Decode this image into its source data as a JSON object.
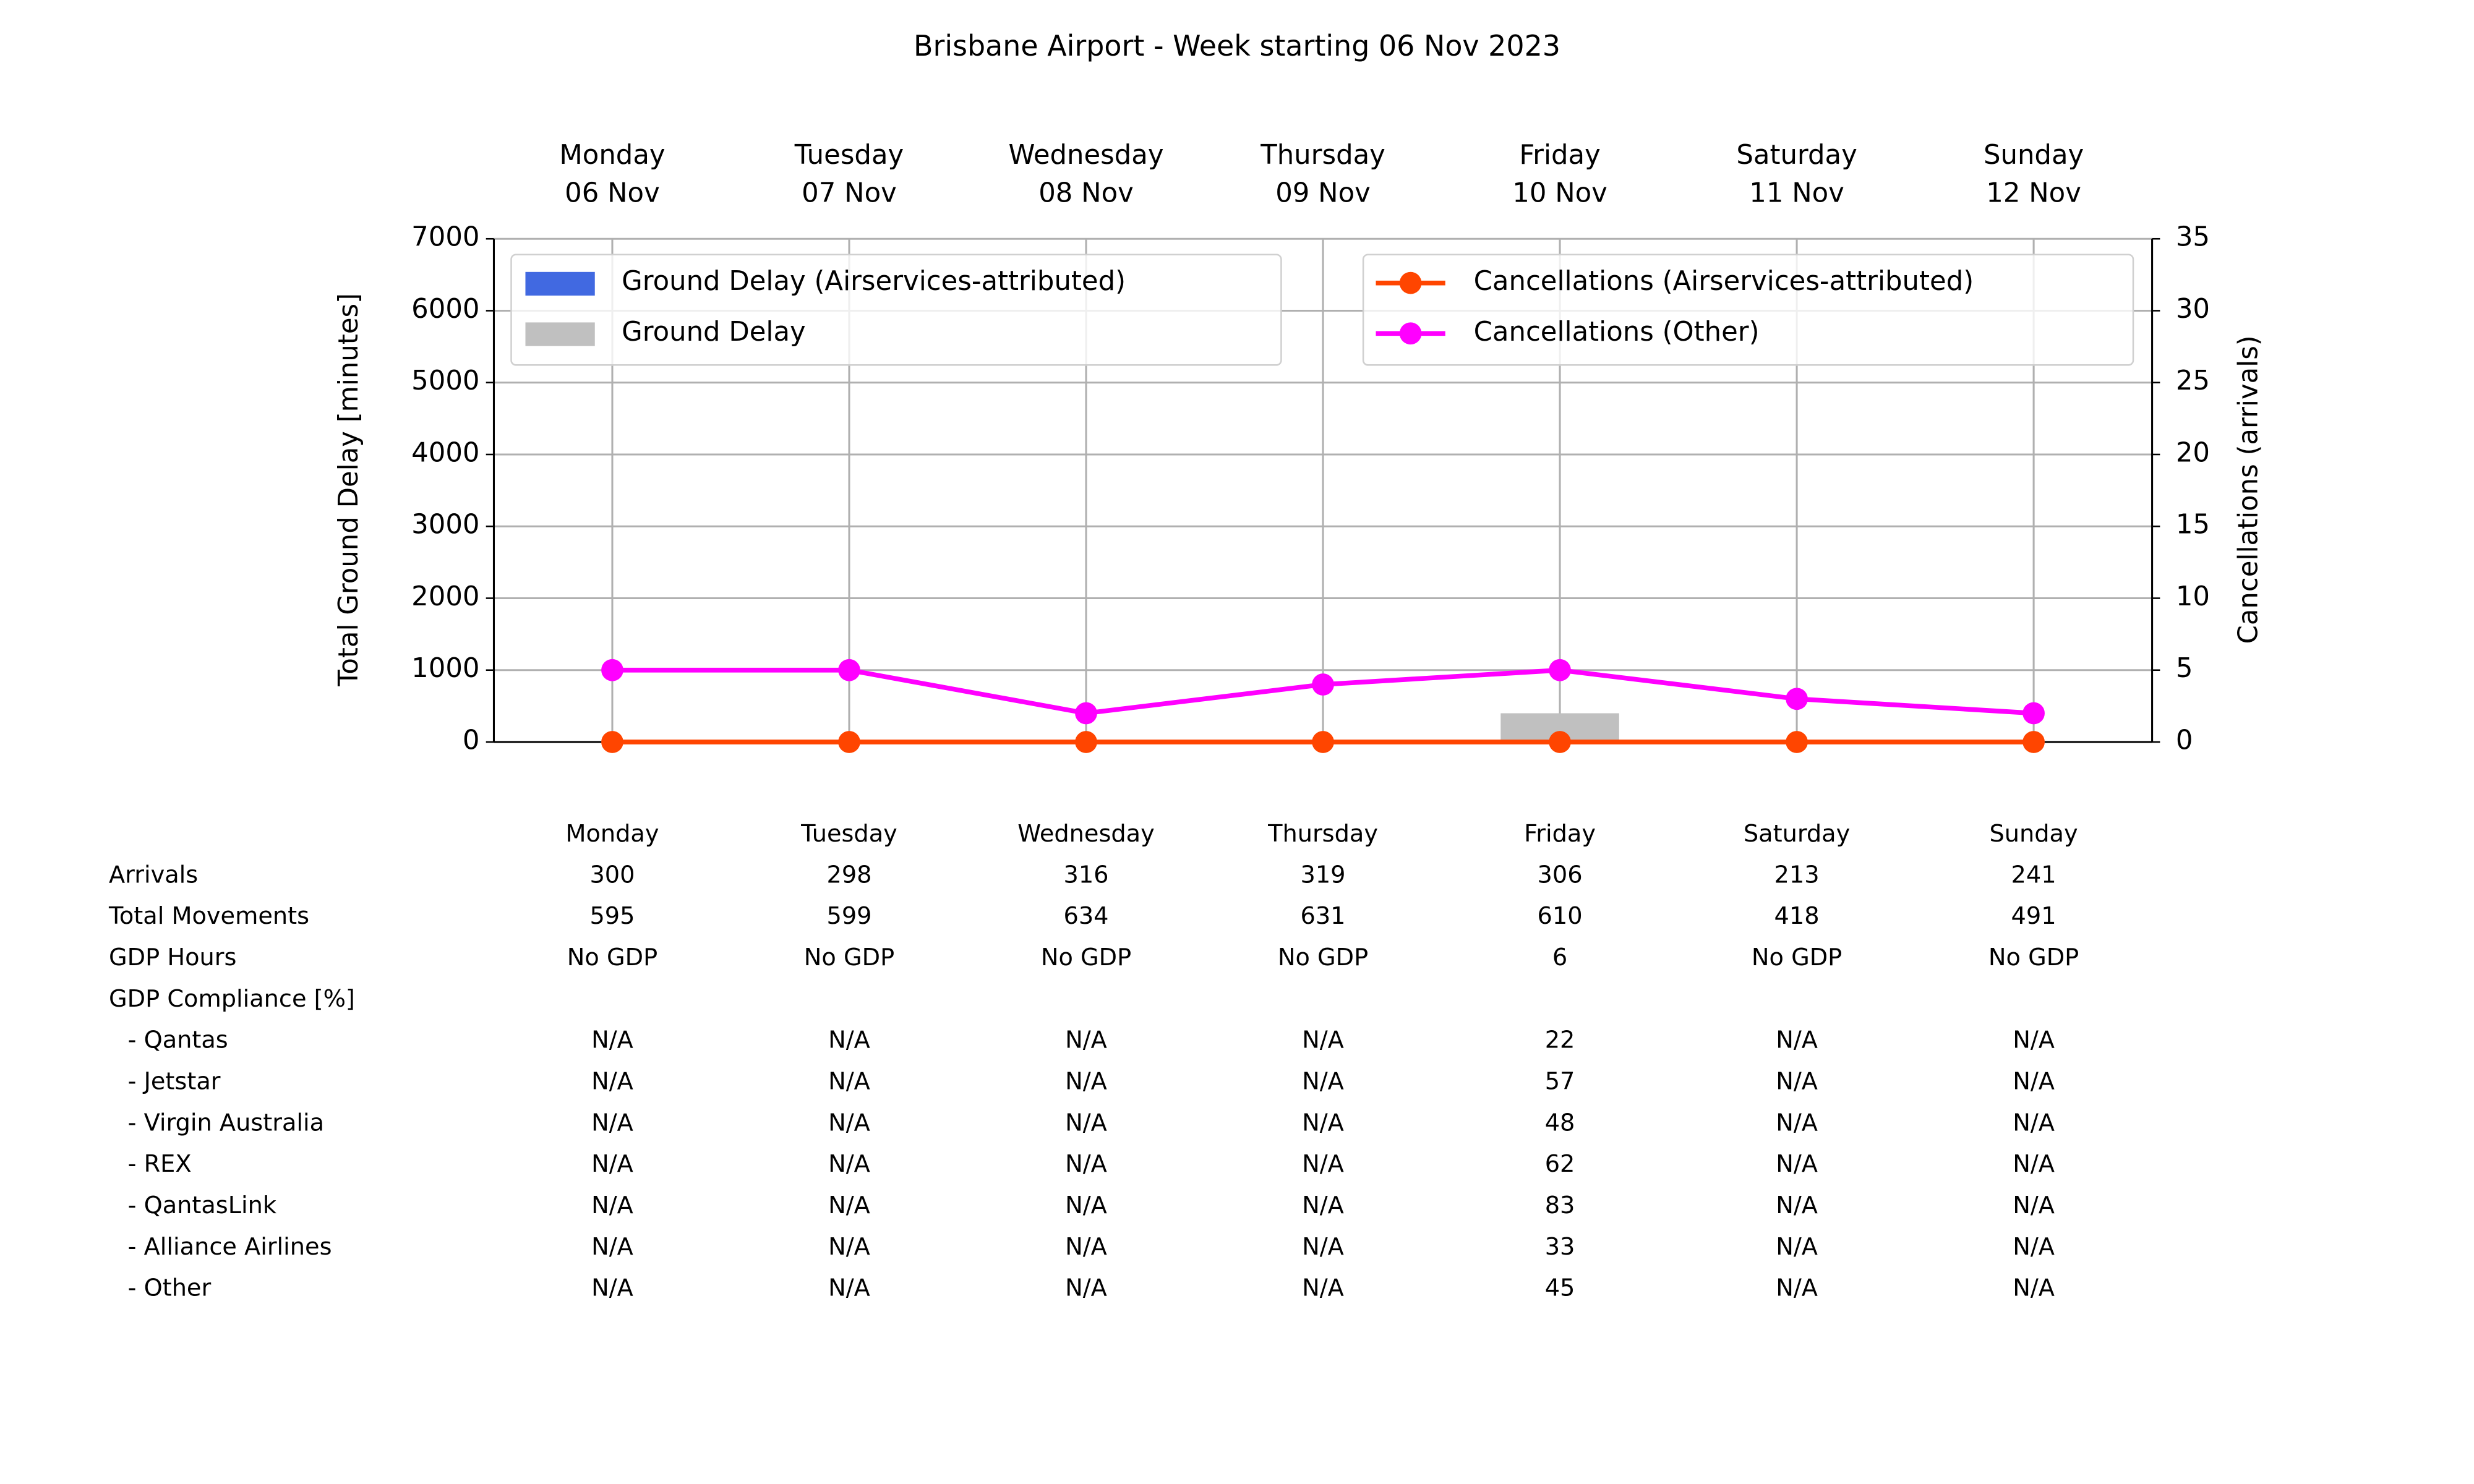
{
  "chart_data": {
    "type": "bar",
    "title": "Brisbane Airport - Week starting 06 Nov 2023",
    "categories": [
      "Monday",
      "Tuesday",
      "Wednesday",
      "Thursday",
      "Friday",
      "Saturday",
      "Sunday"
    ],
    "dates": [
      "06 Nov",
      "07 Nov",
      "08 Nov",
      "09 Nov",
      "10 Nov",
      "11 Nov",
      "12 Nov"
    ],
    "ylabel": "Total Ground Delay [minutes]",
    "y2label": "Cancellations (arrivals)",
    "ylim": [
      0,
      7000
    ],
    "yticks": [
      0,
      1000,
      2000,
      3000,
      4000,
      5000,
      6000,
      7000
    ],
    "y2lim": [
      0,
      35
    ],
    "y2ticks": [
      0,
      5,
      10,
      15,
      20,
      25,
      30,
      35
    ],
    "grid": true,
    "legend": "upper left",
    "legend2": "upper right",
    "series": [
      {
        "name": "Ground Delay (Airservices-attributed)",
        "type": "bar",
        "color": "#4169e1",
        "values": [
          0,
          0,
          0,
          0,
          0,
          0,
          0
        ]
      },
      {
        "name": "Ground Delay",
        "type": "bar",
        "color": "#c0c0c0",
        "values": [
          0,
          0,
          0,
          0,
          400,
          0,
          0
        ]
      },
      {
        "name": "Cancellations (Airservices-attributed)",
        "type": "line",
        "axis": "y2",
        "color": "#ff4500",
        "values": [
          0,
          0,
          0,
          0,
          0,
          0,
          0
        ]
      },
      {
        "name": "Cancellations (Other)",
        "type": "line",
        "axis": "y2",
        "color": "#ff00ff",
        "values": [
          5,
          5,
          2,
          4,
          5,
          3,
          2
        ]
      }
    ]
  },
  "table": {
    "rows": [
      {
        "label": "Arrivals",
        "values": [
          300,
          298,
          316,
          319,
          306,
          213,
          241
        ]
      },
      {
        "label": "Total Movements",
        "values": [
          595,
          599,
          634,
          631,
          610,
          418,
          491
        ]
      },
      {
        "label": "GDP Hours",
        "values": [
          "No GDP",
          "No GDP",
          "No GDP",
          "No GDP",
          6,
          "No GDP",
          "No GDP"
        ]
      },
      {
        "label": "GDP Compliance [%]"
      },
      {
        "label": "- Qantas",
        "values": [
          "N/A",
          "N/A",
          "N/A",
          "N/A",
          22,
          "N/A",
          "N/A"
        ]
      },
      {
        "label": "- Jetstar",
        "values": [
          "N/A",
          "N/A",
          "N/A",
          "N/A",
          57,
          "N/A",
          "N/A"
        ]
      },
      {
        "label": "- Virgin Australia",
        "values": [
          "N/A",
          "N/A",
          "N/A",
          "N/A",
          48,
          "N/A",
          "N/A"
        ]
      },
      {
        "label": "- REX",
        "values": [
          "N/A",
          "N/A",
          "N/A",
          "N/A",
          62,
          "N/A",
          "N/A"
        ]
      },
      {
        "label": "- QantasLink",
        "values": [
          "N/A",
          "N/A",
          "N/A",
          "N/A",
          83,
          "N/A",
          "N/A"
        ]
      },
      {
        "label": "- Alliance Airlines",
        "values": [
          "N/A",
          "N/A",
          "N/A",
          "N/A",
          33,
          "N/A",
          "N/A"
        ]
      },
      {
        "label": "- Other",
        "values": [
          "N/A",
          "N/A",
          "N/A",
          "N/A",
          45,
          "N/A",
          "N/A"
        ]
      }
    ]
  }
}
